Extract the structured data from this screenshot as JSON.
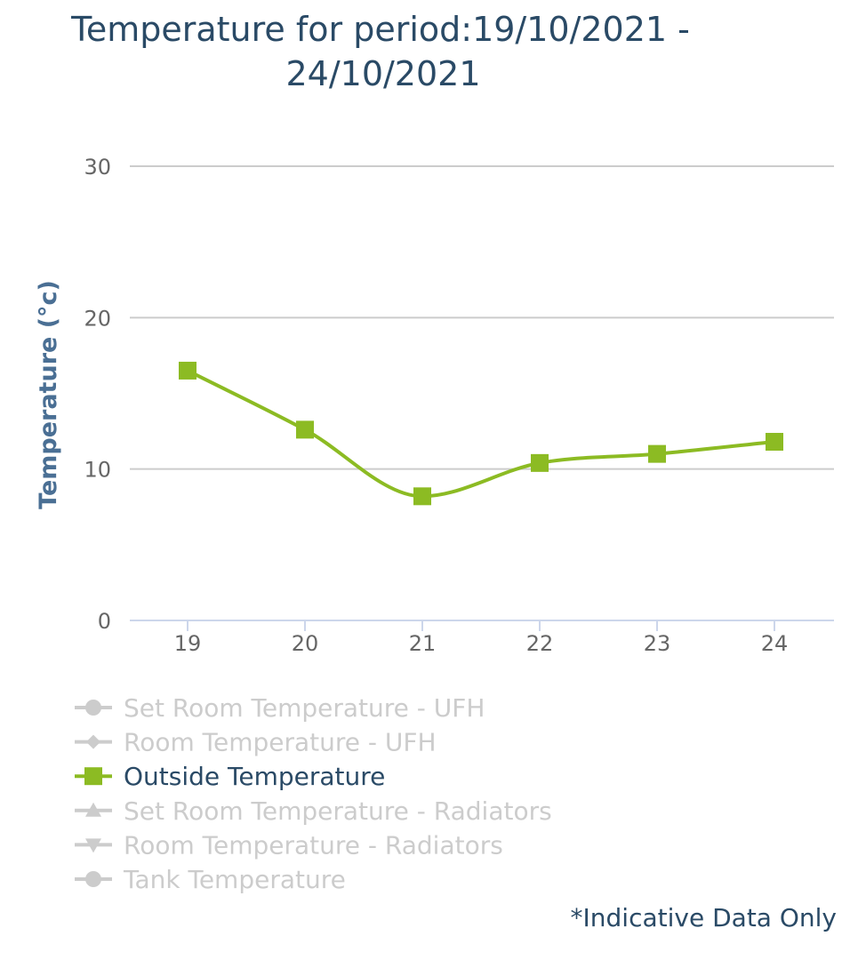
{
  "chart_data": {
    "type": "line",
    "title_lines": [
      "Temperature for period:19/10/2021 -",
      "24/10/2021"
    ],
    "ylabel": "Temperature (°c)",
    "xlabel": "",
    "categories": [
      "19",
      "20",
      "21",
      "22",
      "23",
      "24"
    ],
    "ylim": [
      0,
      30
    ],
    "y_ticks": [
      "0",
      "10",
      "20",
      "30"
    ],
    "grid": true,
    "smooth": true,
    "series": [
      {
        "name": "Outside Temperature",
        "values": [
          16.5,
          12.6,
          8.2,
          10.4,
          11.0,
          11.8
        ],
        "color": "#8cbb23",
        "marker": "square",
        "visible": true
      }
    ],
    "legend": {
      "placement": "bottom-left",
      "items": [
        {
          "label": "Set Room Temperature - UFH",
          "marker": "circle",
          "active": false
        },
        {
          "label": "Room Temperature - UFH",
          "marker": "diamond",
          "active": false
        },
        {
          "label": "Outside Temperature",
          "marker": "square",
          "active": true
        },
        {
          "label": "Set Room Temperature - Radiators",
          "marker": "triangle-up",
          "active": false
        },
        {
          "label": "Room Temperature - Radiators",
          "marker": "triangle-down",
          "active": false
        },
        {
          "label": "Tank Temperature",
          "marker": "circle",
          "active": false
        }
      ],
      "active_color": "#8cbb23",
      "inactive_color": "#cccccc",
      "active_text_color": "#2a4a66"
    },
    "footnote": "*Indicative Data Only"
  }
}
